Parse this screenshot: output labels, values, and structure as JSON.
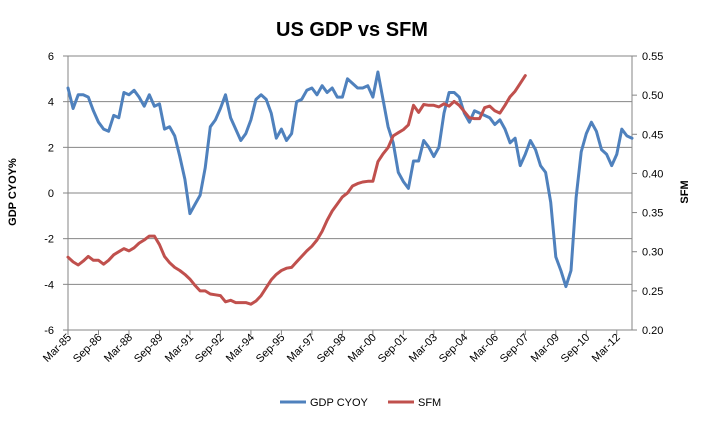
{
  "chart_data": {
    "type": "line",
    "title": "US GDP vs SFM",
    "ylabel": "GDP CYOY%",
    "y2label": "SFM",
    "ylim": [
      -6,
      6
    ],
    "y2lim": [
      0.2,
      0.55
    ],
    "yticks": [
      "6",
      "4",
      "2",
      "0",
      "-2",
      "-4",
      "-6"
    ],
    "y2ticks": [
      "0.55",
      "0.50",
      "0.45",
      "0.40",
      "0.35",
      "0.30",
      "0.25",
      "0.20"
    ],
    "xticks": [
      "Mar-85",
      "Sep-86",
      "Mar-88",
      "Sep-89",
      "Mar-91",
      "Sep-92",
      "Mar-94",
      "Sep-95",
      "Mar-97",
      "Sep-98",
      "Mar-00",
      "Sep-01",
      "Mar-03",
      "Sep-04",
      "Mar-06",
      "Sep-07",
      "Mar-09",
      "Sep-10",
      "Mar-12"
    ],
    "xlim_quarters": [
      0,
      111
    ],
    "grid": "horizontal",
    "legend_position": "bottom",
    "series": [
      {
        "name": "GDP CYOY",
        "axis": "left",
        "color": "#4F81BD",
        "points": [
          [
            0,
            4.6
          ],
          [
            1,
            3.7
          ],
          [
            2,
            4.3
          ],
          [
            3,
            4.3
          ],
          [
            4,
            4.2
          ],
          [
            5,
            3.6
          ],
          [
            6,
            3.1
          ],
          [
            7,
            2.8
          ],
          [
            8,
            2.7
          ],
          [
            9,
            3.4
          ],
          [
            10,
            3.3
          ],
          [
            11,
            4.4
          ],
          [
            12,
            4.3
          ],
          [
            13,
            4.5
          ],
          [
            14,
            4.2
          ],
          [
            15,
            3.8
          ],
          [
            16,
            4.3
          ],
          [
            17,
            3.8
          ],
          [
            18,
            3.9
          ],
          [
            19,
            2.8
          ],
          [
            20,
            2.9
          ],
          [
            21,
            2.5
          ],
          [
            22,
            1.6
          ],
          [
            23,
            0.6
          ],
          [
            24,
            -0.9
          ],
          [
            25,
            -0.5
          ],
          [
            26,
            -0.1
          ],
          [
            27,
            1.1
          ],
          [
            28,
            2.9
          ],
          [
            29,
            3.2
          ],
          [
            30,
            3.7
          ],
          [
            31,
            4.3
          ],
          [
            32,
            3.3
          ],
          [
            33,
            2.8
          ],
          [
            34,
            2.3
          ],
          [
            35,
            2.6
          ],
          [
            36,
            3.2
          ],
          [
            37,
            4.1
          ],
          [
            38,
            4.3
          ],
          [
            39,
            4.1
          ],
          [
            40,
            3.5
          ],
          [
            41,
            2.4
          ],
          [
            42,
            2.8
          ],
          [
            43,
            2.3
          ],
          [
            44,
            2.6
          ],
          [
            45,
            4.0
          ],
          [
            46,
            4.1
          ],
          [
            47,
            4.5
          ],
          [
            48,
            4.6
          ],
          [
            49,
            4.3
          ],
          [
            50,
            4.7
          ],
          [
            51,
            4.4
          ],
          [
            52,
            4.6
          ],
          [
            53,
            4.2
          ],
          [
            54,
            4.2
          ],
          [
            55,
            5.0
          ],
          [
            56,
            4.8
          ],
          [
            57,
            4.6
          ],
          [
            58,
            4.6
          ],
          [
            59,
            4.7
          ],
          [
            60,
            4.2
          ],
          [
            61,
            5.3
          ],
          [
            62,
            4.1
          ],
          [
            63,
            2.9
          ],
          [
            64,
            2.2
          ],
          [
            65,
            0.9
          ],
          [
            66,
            0.5
          ],
          [
            67,
            0.2
          ],
          [
            68,
            1.4
          ],
          [
            69,
            1.4
          ],
          [
            70,
            2.3
          ],
          [
            71,
            2.0
          ],
          [
            72,
            1.6
          ],
          [
            73,
            2.0
          ],
          [
            74,
            3.5
          ],
          [
            75,
            4.4
          ],
          [
            76,
            4.4
          ],
          [
            77,
            4.2
          ],
          [
            78,
            3.5
          ],
          [
            79,
            3.1
          ],
          [
            80,
            3.6
          ],
          [
            81,
            3.5
          ],
          [
            82,
            3.4
          ],
          [
            83,
            3.3
          ],
          [
            84,
            3.0
          ],
          [
            85,
            3.2
          ],
          [
            86,
            2.8
          ],
          [
            87,
            2.2
          ],
          [
            88,
            2.4
          ],
          [
            89,
            1.2
          ],
          [
            90,
            1.7
          ],
          [
            91,
            2.3
          ],
          [
            92,
            1.9
          ],
          [
            93,
            1.2
          ],
          [
            94,
            0.9
          ],
          [
            95,
            -0.4
          ],
          [
            96,
            -2.8
          ],
          [
            97,
            -3.4
          ],
          [
            98,
            -4.1
          ],
          [
            99,
            -3.4
          ],
          [
            100,
            -0.2
          ],
          [
            101,
            1.8
          ],
          [
            102,
            2.6
          ],
          [
            103,
            3.1
          ],
          [
            104,
            2.7
          ],
          [
            105,
            1.9
          ],
          [
            106,
            1.7
          ],
          [
            107,
            1.2
          ],
          [
            108,
            1.7
          ],
          [
            109,
            2.8
          ],
          [
            110,
            2.5
          ],
          [
            111,
            2.4
          ]
        ]
      },
      {
        "name": "SFM",
        "axis": "right",
        "color": "#C0504D",
        "points": [
          [
            0,
            0.293
          ],
          [
            1,
            0.287
          ],
          [
            2,
            0.283
          ],
          [
            3,
            0.288
          ],
          [
            4,
            0.294
          ],
          [
            5,
            0.289
          ],
          [
            6,
            0.289
          ],
          [
            7,
            0.284
          ],
          [
            8,
            0.289
          ],
          [
            9,
            0.296
          ],
          [
            10,
            0.3
          ],
          [
            11,
            0.304
          ],
          [
            12,
            0.301
          ],
          [
            13,
            0.305
          ],
          [
            14,
            0.311
          ],
          [
            15,
            0.315
          ],
          [
            16,
            0.32
          ],
          [
            17,
            0.32
          ],
          [
            18,
            0.309
          ],
          [
            19,
            0.294
          ],
          [
            20,
            0.286
          ],
          [
            21,
            0.28
          ],
          [
            22,
            0.276
          ],
          [
            23,
            0.271
          ],
          [
            24,
            0.265
          ],
          [
            25,
            0.257
          ],
          [
            26,
            0.25
          ],
          [
            27,
            0.25
          ],
          [
            28,
            0.246
          ],
          [
            29,
            0.245
          ],
          [
            30,
            0.244
          ],
          [
            31,
            0.236
          ],
          [
            32,
            0.238
          ],
          [
            33,
            0.235
          ],
          [
            34,
            0.235
          ],
          [
            35,
            0.235
          ],
          [
            36,
            0.233
          ],
          [
            37,
            0.237
          ],
          [
            38,
            0.244
          ],
          [
            39,
            0.254
          ],
          [
            40,
            0.264
          ],
          [
            41,
            0.271
          ],
          [
            42,
            0.276
          ],
          [
            43,
            0.279
          ],
          [
            44,
            0.28
          ],
          [
            45,
            0.287
          ],
          [
            46,
            0.294
          ],
          [
            47,
            0.301
          ],
          [
            48,
            0.307
          ],
          [
            49,
            0.315
          ],
          [
            50,
            0.326
          ],
          [
            51,
            0.34
          ],
          [
            52,
            0.352
          ],
          [
            53,
            0.361
          ],
          [
            54,
            0.37
          ],
          [
            55,
            0.375
          ],
          [
            56,
            0.384
          ],
          [
            57,
            0.387
          ],
          [
            58,
            0.389
          ],
          [
            59,
            0.39
          ],
          [
            60,
            0.39
          ],
          [
            61,
            0.415
          ],
          [
            62,
            0.425
          ],
          [
            63,
            0.433
          ],
          [
            64,
            0.448
          ],
          [
            65,
            0.452
          ],
          [
            66,
            0.456
          ],
          [
            67,
            0.462
          ],
          [
            68,
            0.487
          ],
          [
            69,
            0.478
          ],
          [
            70,
            0.488
          ],
          [
            71,
            0.487
          ],
          [
            72,
            0.487
          ],
          [
            73,
            0.485
          ],
          [
            74,
            0.489
          ],
          [
            75,
            0.486
          ],
          [
            76,
            0.492
          ],
          [
            77,
            0.487
          ],
          [
            78,
            0.479
          ],
          [
            79,
            0.471
          ],
          [
            80,
            0.47
          ],
          [
            81,
            0.47
          ],
          [
            82,
            0.484
          ],
          [
            83,
            0.486
          ],
          [
            84,
            0.48
          ],
          [
            85,
            0.477
          ],
          [
            86,
            0.487
          ],
          [
            87,
            0.498
          ],
          [
            88,
            0.505
          ],
          [
            89,
            0.515
          ],
          [
            90,
            0.525
          ]
        ]
      }
    ]
  }
}
